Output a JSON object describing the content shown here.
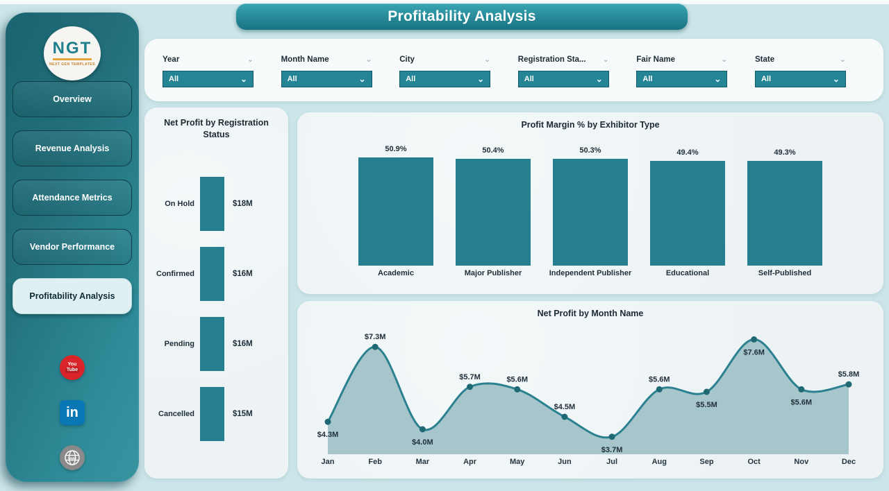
{
  "page": {
    "title": "Profitability Analysis"
  },
  "sidebar": {
    "logo": {
      "acronym": "NGT",
      "tagline": "NEXT GEN TEMPLATES"
    },
    "items": [
      {
        "label": "Overview",
        "active": false
      },
      {
        "label": "Revenue Analysis",
        "active": false
      },
      {
        "label": "Attendance Metrics",
        "active": false
      },
      {
        "label": "Vendor Performance",
        "active": false
      },
      {
        "label": "Profitability Analysis",
        "active": true
      }
    ],
    "social": [
      {
        "icon": "youtube-icon",
        "line1": "You",
        "line2": "Tube"
      },
      {
        "icon": "linkedin-icon",
        "text": "in"
      },
      {
        "icon": "website-icon",
        "text": "www"
      }
    ]
  },
  "filters": [
    {
      "key": "year",
      "label": "Year",
      "value": "All"
    },
    {
      "key": "month-name",
      "label": "Month Name",
      "value": "All"
    },
    {
      "key": "city",
      "label": "City",
      "value": "All"
    },
    {
      "key": "registration-status",
      "label": "Registration Sta...",
      "value": "All"
    },
    {
      "key": "fair-name",
      "label": "Fair Name",
      "value": "All"
    },
    {
      "key": "state",
      "label": "State",
      "value": "All"
    }
  ],
  "colors": {
    "accent_teal": "#267f8e",
    "page_bg": "#cbe5e9",
    "card_bg": "#edf3f5",
    "area_fill": "#a7c6cb",
    "line": "#2b818f",
    "marker": "#1f6974",
    "active_nav_bg": "#dff0f2",
    "youtube_red": "#d9252a",
    "linkedin_blue": "#0a77b5",
    "website_gray": "#8a8a8a"
  },
  "chart_data": [
    {
      "type": "bar",
      "orientation": "row-list",
      "title": "Net Profit by Registration Status",
      "categories": [
        "On Hold",
        "Confirmed",
        "Pending",
        "Cancelled"
      ],
      "values": [
        18,
        16,
        16,
        15
      ],
      "value_labels": [
        "$18M",
        "$16M",
        "$16M",
        "$15M"
      ],
      "unit": "$M"
    },
    {
      "type": "bar",
      "title": "Profit Margin % by Exhibitor Type",
      "categories": [
        "Academic",
        "Major Publisher",
        "Independent Publisher",
        "Educational",
        "Self-Published"
      ],
      "values": [
        50.9,
        50.4,
        50.3,
        49.4,
        49.3
      ],
      "value_labels": [
        "50.9%",
        "50.4%",
        "50.3%",
        "49.4%",
        "49.3%"
      ],
      "ylim": [
        0,
        51
      ],
      "unit": "%"
    },
    {
      "type": "area",
      "title": "Net Profit by Month Name",
      "categories": [
        "Jan",
        "Feb",
        "Mar",
        "Apr",
        "May",
        "Jun",
        "Jul",
        "Aug",
        "Sep",
        "Oct",
        "Nov",
        "Dec"
      ],
      "values": [
        4.3,
        7.3,
        4.0,
        5.7,
        5.6,
        4.5,
        3.7,
        5.6,
        5.5,
        7.6,
        5.6,
        5.8
      ],
      "value_labels": [
        "$4.3M",
        "$7.3M",
        "$4.0M",
        "$5.7M",
        "$5.6M",
        "$4.5M",
        "$3.7M",
        "$5.6M",
        "$5.5M",
        "$7.6M",
        "$5.6M",
        "$5.8M"
      ],
      "label_positions": [
        "below",
        "above",
        "below",
        "above",
        "above",
        "above",
        "below",
        "above",
        "below",
        "below",
        "below",
        "above"
      ],
      "unit": "$M"
    }
  ]
}
